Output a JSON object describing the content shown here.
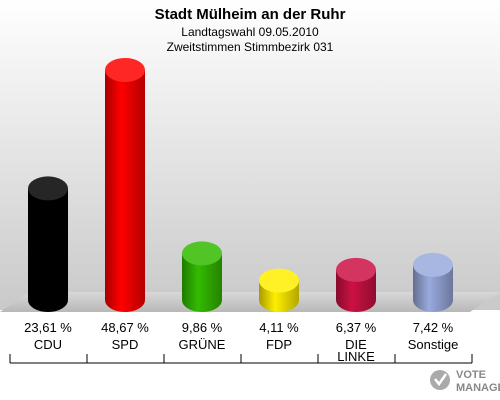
{
  "chart_data": {
    "type": "bar",
    "title": "Stadt Mülheim an der Ruhr",
    "subtitle_1": "Landtagswahl 09.05.2010",
    "subtitle_2": "Zweitstimmen Stimmbezirk 031",
    "categories": [
      [
        "CDU"
      ],
      [
        "SPD"
      ],
      [
        "GRÜNE"
      ],
      [
        "FDP"
      ],
      [
        "DIE",
        "LINKE"
      ],
      [
        "Sonstige"
      ]
    ],
    "values": [
      23.61,
      48.67,
      9.86,
      4.11,
      6.37,
      7.42
    ],
    "value_labels": [
      "23,61 %",
      "48,67 %",
      "9,86 %",
      "4,11 %",
      "6,37 %",
      "7,42 %"
    ],
    "colors": [
      "#000000",
      "#ff0000",
      "#33bb00",
      "#ffee00",
      "#cc1144",
      "#99aadd"
    ],
    "ylim": [
      0,
      48.67
    ],
    "grid": false,
    "legend": "none"
  },
  "logo": {
    "line1": "VOTE",
    "line2": "MANAGER"
  }
}
